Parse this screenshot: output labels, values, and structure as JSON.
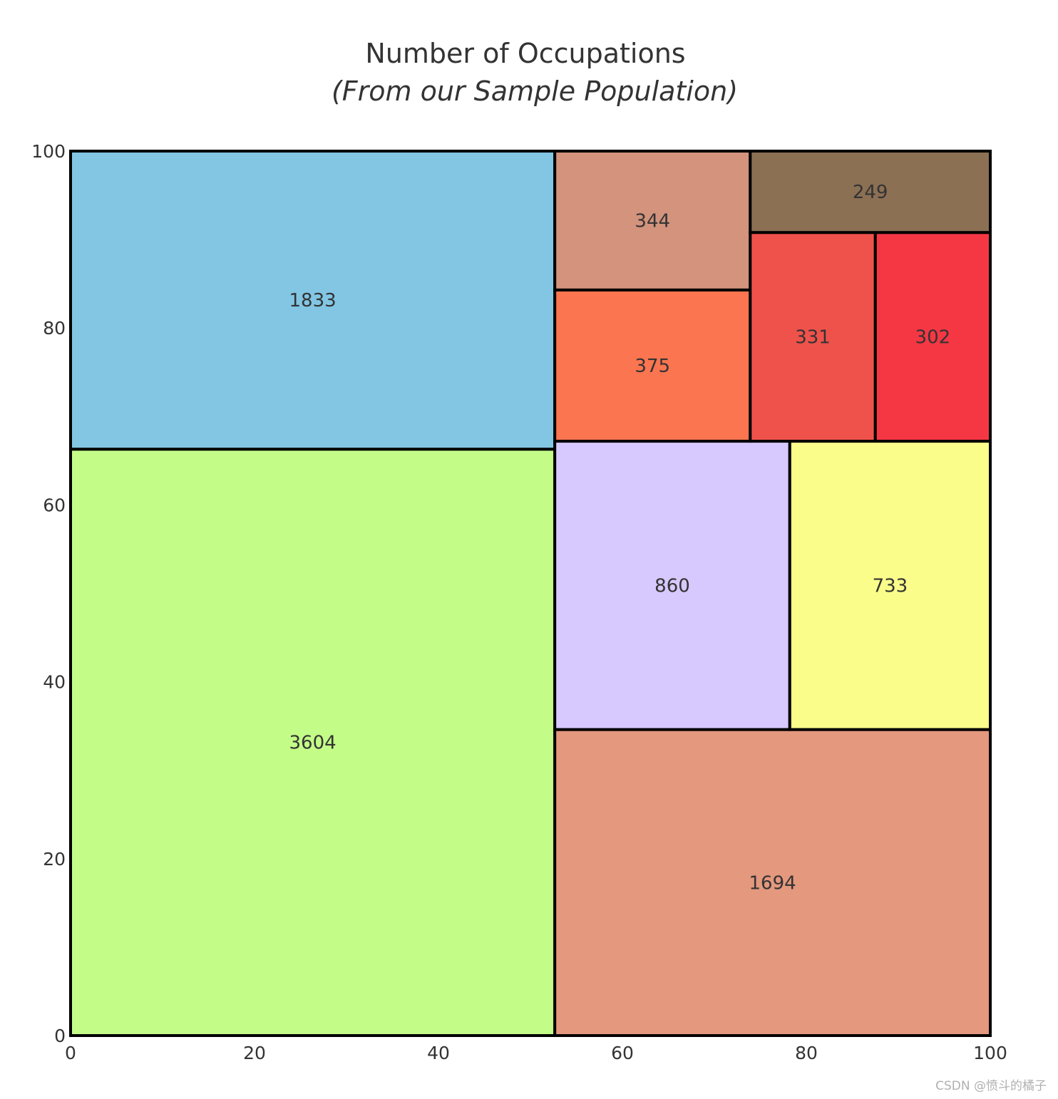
{
  "chart_data": {
    "type": "treemap",
    "title": "Number of Occupations",
    "subtitle": "(From our Sample Population)",
    "xlim": [
      0,
      100
    ],
    "ylim": [
      0,
      100
    ],
    "x_ticks": [
      "0",
      "20",
      "40",
      "60",
      "80",
      "100"
    ],
    "y_ticks": [
      "0",
      "20",
      "40",
      "60",
      "80",
      "100"
    ],
    "rectangles": [
      {
        "value": 3604,
        "x0": 0,
        "x1": 52.65,
        "y0": 0,
        "y1": 66.3,
        "color": "#c3fd88"
      },
      {
        "value": 1833,
        "x0": 0,
        "x1": 52.65,
        "y0": 66.3,
        "y1": 100,
        "color": "#82c6e4"
      },
      {
        "value": 1694,
        "x0": 52.65,
        "x1": 100,
        "y0": 0,
        "y1": 34.6,
        "color": "#e4987e"
      },
      {
        "value": 860,
        "x0": 52.65,
        "x1": 78.2,
        "y0": 34.6,
        "y1": 67.2,
        "color": "#d7c9fd"
      },
      {
        "value": 733,
        "x0": 78.2,
        "x1": 100,
        "y0": 34.6,
        "y1": 67.2,
        "color": "#fafd8a"
      },
      {
        "value": 375,
        "x0": 52.65,
        "x1": 73.9,
        "y0": 67.2,
        "y1": 84.3,
        "color": "#fa7550"
      },
      {
        "value": 344,
        "x0": 52.65,
        "x1": 73.9,
        "y0": 84.3,
        "y1": 100,
        "color": "#d3937d"
      },
      {
        "value": 331,
        "x0": 73.9,
        "x1": 87.5,
        "y0": 67.2,
        "y1": 90.8,
        "color": "#ef524b"
      },
      {
        "value": 302,
        "x0": 87.5,
        "x1": 100,
        "y0": 67.2,
        "y1": 90.8,
        "color": "#f53744"
      },
      {
        "value": 249,
        "x0": 73.9,
        "x1": 100,
        "y0": 90.8,
        "y1": 100,
        "color": "#8c7054"
      }
    ]
  },
  "watermark": "CSDN @愤斗的橘子"
}
